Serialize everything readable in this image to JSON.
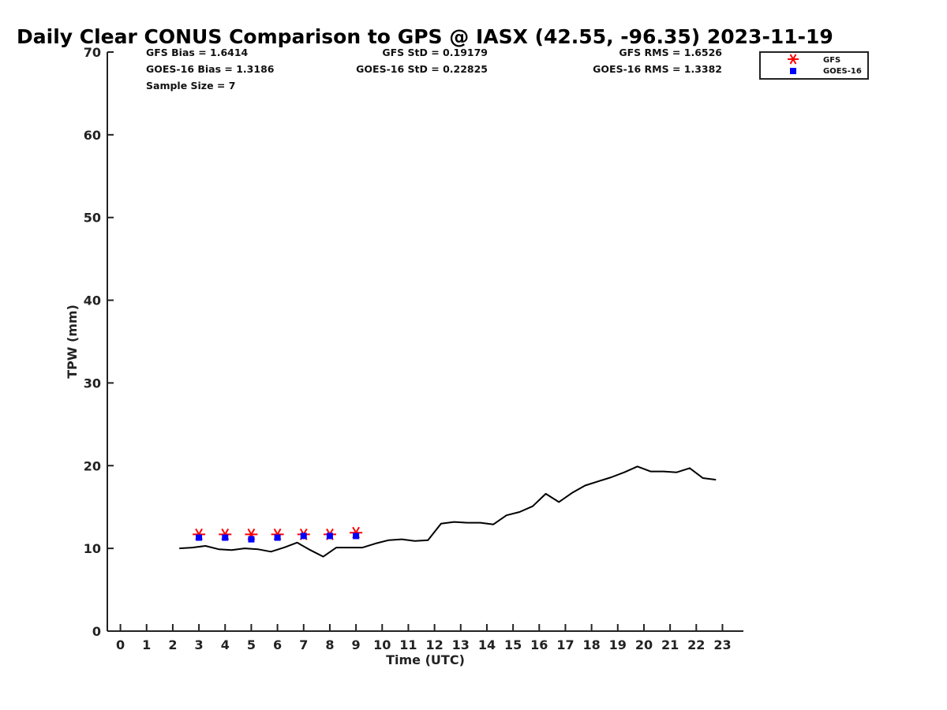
{
  "chart_data": {
    "type": "line",
    "title": "Daily Clear CONUS Comparison to GPS @ IASX (42.55, -96.35) 2023-11-19",
    "xlabel": "Time (UTC)",
    "ylabel": "TPW (mm)",
    "xlim": [
      -0.5,
      23.8
    ],
    "ylim": [
      0,
      70
    ],
    "x_ticks": [
      0,
      1,
      2,
      3,
      4,
      5,
      6,
      7,
      8,
      9,
      10,
      11,
      12,
      13,
      14,
      15,
      16,
      17,
      18,
      19,
      20,
      21,
      22,
      23
    ],
    "y_ticks": [
      0,
      10,
      20,
      30,
      40,
      50,
      60,
      70
    ],
    "grid": false,
    "legend_position": "top-right",
    "stats": {
      "gfs_bias": "GFS Bias = 1.6414",
      "goes_bias": "GOES-16 Bias = 1.3186",
      "sample_size": "Sample Size = 7",
      "gfs_std": "GFS StD = 0.19179",
      "goes_std": "GOES-16 StD = 0.22825",
      "gfs_rms": "GFS RMS = 1.6526",
      "goes_rms": "GOES-16 RMS = 1.3382"
    },
    "series": [
      {
        "name": "GFS",
        "marker": "asterisk",
        "color": "#ff0000",
        "x": [
          3,
          4,
          5,
          6,
          7,
          8,
          9
        ],
        "y": [
          11.7,
          11.7,
          11.7,
          11.7,
          11.7,
          11.7,
          11.9
        ]
      },
      {
        "name": "GOES-16",
        "marker": "square",
        "color": "#0000ff",
        "x": [
          3,
          4,
          5,
          6,
          7,
          8,
          9
        ],
        "y": [
          11.3,
          11.3,
          11.1,
          11.3,
          11.5,
          11.5,
          11.5
        ]
      },
      {
        "marker": "line",
        "color": "#000000",
        "x": [
          2.25,
          2.75,
          3.25,
          3.75,
          4.25,
          4.75,
          5.25,
          5.75,
          6.25,
          6.75,
          7.25,
          7.75,
          8.25,
          8.75,
          9.25,
          9.75,
          10.25,
          10.75,
          11.25,
          11.75,
          12.25,
          12.75,
          13.25,
          13.75,
          14.25,
          14.75,
          15.25,
          15.75,
          16.25,
          16.75,
          17.25,
          17.75,
          18.25,
          18.75,
          19.25,
          19.75,
          20.25,
          20.75,
          21.25,
          21.75,
          22.25,
          22.75
        ],
        "y": [
          10.0,
          10.1,
          10.3,
          9.9,
          9.8,
          10.0,
          9.9,
          9.6,
          10.1,
          10.7,
          9.8,
          9.0,
          10.1,
          10.1,
          10.1,
          10.6,
          11.0,
          11.1,
          10.9,
          11.0,
          13.0,
          13.2,
          13.1,
          13.1,
          12.9,
          14.0,
          14.4,
          15.1,
          16.6,
          15.6,
          16.7,
          17.6,
          18.1,
          18.6,
          19.2,
          19.9,
          19.3,
          19.3,
          19.2,
          19.7,
          18.5,
          18.3
        ]
      }
    ]
  }
}
